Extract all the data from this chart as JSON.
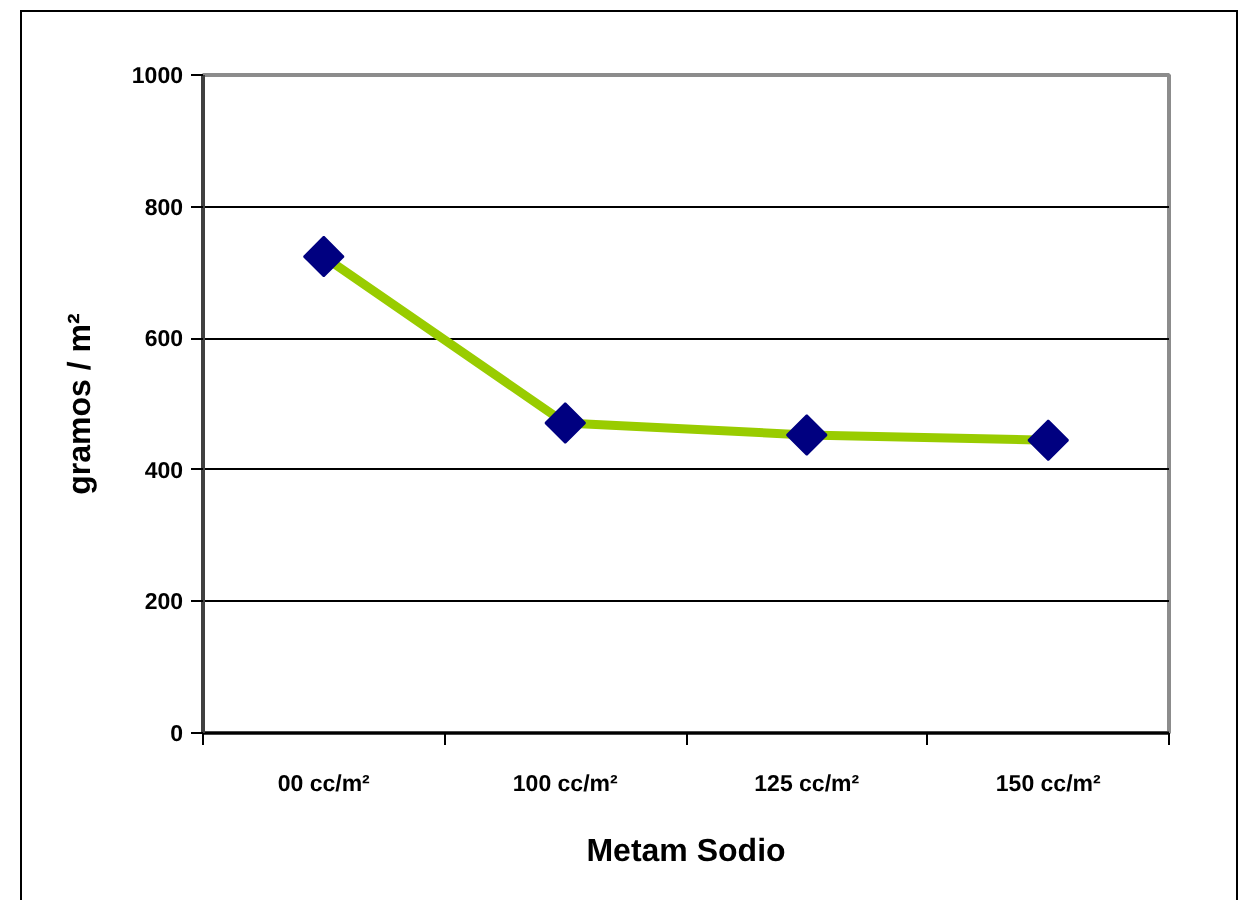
{
  "chart_data": {
    "type": "line",
    "xlabel": "Metam Sodio",
    "ylabel": "gramos / m²",
    "categories": [
      "00 cc/m²",
      "100 cc/m²",
      "125 cc/m²",
      "150 cc/m²"
    ],
    "series": [
      {
        "color": "#99cc00",
        "colors": [
          "#000080",
          "#000080",
          "#000080",
          "#000080"
        ],
        "values": [
          724,
          471,
          453,
          445
        ]
      }
    ],
    "ylim": [
      0,
      1000
    ],
    "yticks": [
      0,
      200,
      400,
      600,
      800,
      1000
    ],
    "grid": "y",
    "marker": "diamond",
    "line_style": "solid"
  }
}
